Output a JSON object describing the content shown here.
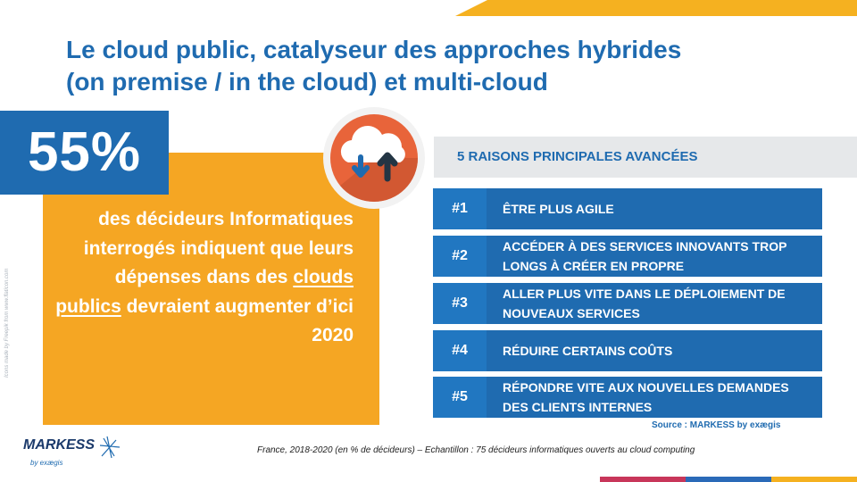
{
  "title": {
    "line1": "Le cloud public, catalyseur des approches hybrides",
    "line2": "(on premise / in the cloud) et multi-cloud"
  },
  "stat": {
    "value": "55%",
    "text_before": "des décideurs Informatiques interrogés indiquent que leurs dépenses dans des ",
    "text_link": "clouds publics",
    "text_after": " devraient augmenter d’ici 2020"
  },
  "side_credit": "Icons made by Freepik from www.flaticon.com",
  "reasons_header": "5 RAISONS PRINCIPALES AVANCÉES",
  "reasons": [
    {
      "num": "#1",
      "text": "ÊTRE PLUS AGILE"
    },
    {
      "num": "#2",
      "text": "ACCÉDER À DES SERVICES INNOVANTS TROP LONGS À CRÉER EN PROPRE"
    },
    {
      "num": "#3",
      "text": "ALLER PLUS VITE DANS LE DÉPLOIEMENT DE NOUVEAUX SERVICES"
    },
    {
      "num": "#4",
      "text": "RÉDUIRE CERTAINS COÛTS"
    },
    {
      "num": "#5",
      "text": "RÉPONDRE VITE AUX NOUVELLES DEMANDES DES CLIENTS INTERNES"
    }
  ],
  "source": "Source : MARKESS by exægis",
  "footnote": "France, 2018-2020 (en % de décideurs) – Echantillon : 75 décideurs informatiques ouverts au cloud computing",
  "logo": {
    "name": "MARKESS",
    "sub": "by exægis"
  },
  "colors": {
    "blue": "#1f6bb0",
    "orange": "#f5a623",
    "yellow": "#f5b120",
    "icon_orange": "#e8643a",
    "grey_header": "#e6e8ea"
  }
}
